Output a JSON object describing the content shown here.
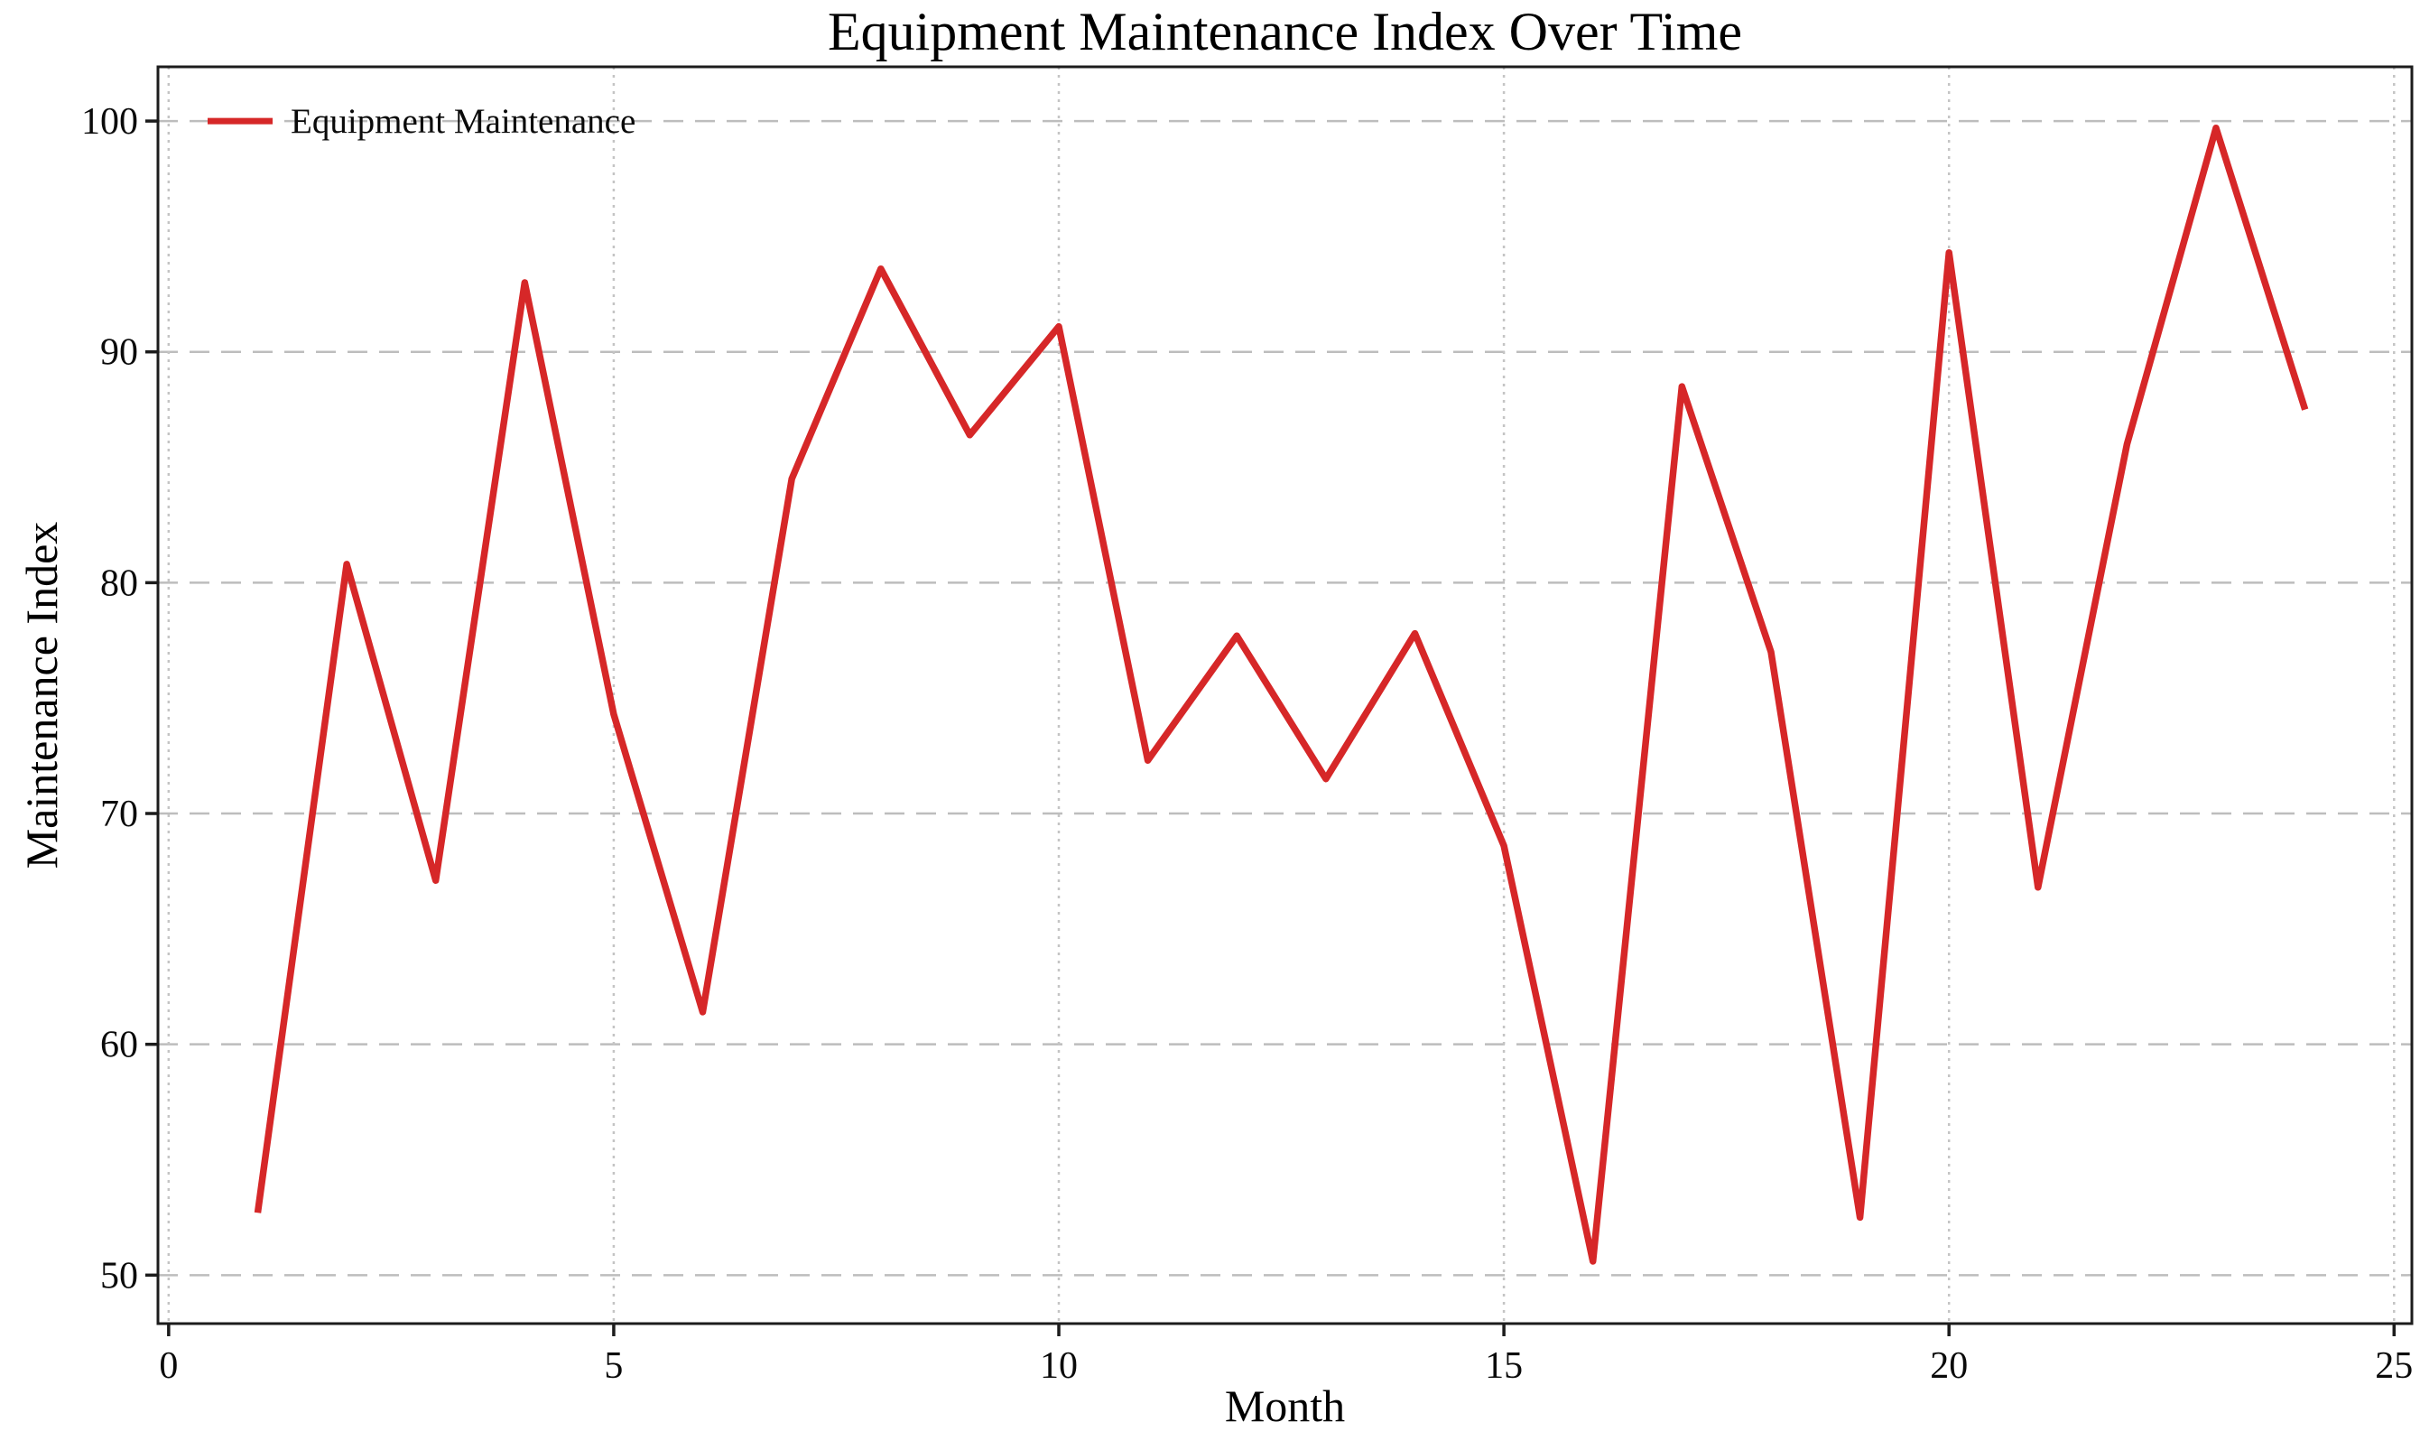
{
  "figure": {
    "title": "Equipment Maintenance Index Over Time"
  },
  "axes": {
    "xlabel": "Month",
    "ylabel": "Maintenance Index"
  },
  "legend": {
    "position": "upper left",
    "entries": [
      {
        "label": "Equipment Maintenance",
        "color": "#d62728"
      }
    ]
  },
  "colors": {
    "line": "#d62728",
    "grid_horizontal": "#bdbdbd",
    "grid_vertical": "#c4c4c4",
    "spine": "#1c1c1c",
    "tick": "#1c1c1c",
    "text": "#0a0a0a",
    "background": "#ffffff"
  },
  "chart_data": {
    "type": "line",
    "title": "Equipment Maintenance Index Over Time",
    "xlabel": "Month",
    "ylabel": "Maintenance Index",
    "x": [
      1,
      2,
      3,
      4,
      5,
      6,
      7,
      8,
      9,
      10,
      11,
      12,
      13,
      14,
      15,
      16,
      17,
      18,
      19,
      20,
      21,
      22,
      23,
      24
    ],
    "series": [
      {
        "name": "Equipment Maintenance",
        "color": "#d62728",
        "values": [
          52.7,
          80.8,
          67.1,
          93.0,
          74.3,
          61.4,
          84.5,
          93.6,
          86.4,
          91.1,
          72.3,
          77.7,
          71.5,
          77.8,
          68.6,
          50.6,
          88.5,
          77.0,
          52.5,
          94.3,
          66.8,
          86.0,
          99.7,
          87.5
        ]
      }
    ],
    "x_ticks": [
      0,
      5,
      10,
      15,
      20,
      25
    ],
    "y_ticks": [
      50,
      60,
      70,
      80,
      90,
      100
    ],
    "xlim": [
      -0.12,
      25.2
    ],
    "ylim": [
      47.9,
      102.35
    ],
    "grid": true,
    "grid_style": {
      "horizontal": "dashed",
      "vertical": "dotted"
    },
    "legend_position": "upper left"
  }
}
